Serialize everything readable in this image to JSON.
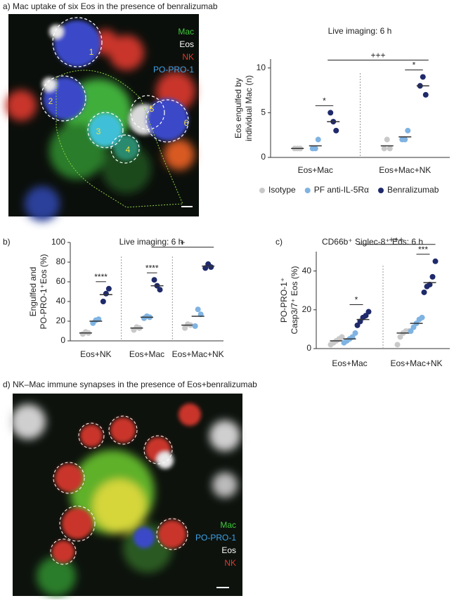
{
  "panel_a": {
    "title": "a) Mac uptake of six Eos in the presence of benralizumab",
    "legend": [
      "Mac",
      "Eos",
      "NK",
      "PO-PRO-1"
    ],
    "cell_labels": [
      "1",
      "2",
      "3",
      "4",
      "5",
      "6"
    ]
  },
  "panel_d": {
    "title": "d) NK–Mac immune synapses in the presence of Eos+benralizumab",
    "legend": [
      "Mac",
      "PO-PRO-1",
      "Eos",
      "NK"
    ]
  },
  "panel_labels": [
    "b)",
    "c)"
  ],
  "chart_data": [
    {
      "type": "dot",
      "title": "Live imaging: 6 h",
      "ylabel": [
        "Eos engulfed by",
        "individual Mac (n)"
      ],
      "categories": [
        "Eos+Mac",
        "Eos+Mac+NK"
      ],
      "ylim": [
        0,
        11
      ],
      "yticks": [
        0,
        5,
        10
      ],
      "series": [
        {
          "name": "Isotype",
          "color": "#c9c9c9",
          "values": [
            1,
            1.3
          ],
          "points": [
            [
              1,
              1,
              1
            ],
            [
              1,
              2,
              1
            ]
          ]
        },
        {
          "name": "PF anti-IL-5Rα",
          "color": "#7fb3e2",
          "values": [
            1.3,
            2.3
          ],
          "points": [
            [
              1,
              1,
              2
            ],
            [
              2,
              2,
              3
            ]
          ]
        },
        {
          "name": "Benralizumab",
          "color": "#1f2a6b",
          "values": [
            4,
            8
          ],
          "points": [
            [
              5,
              4,
              3
            ],
            [
              8,
              9,
              7
            ]
          ]
        }
      ],
      "annotations": [
        {
          "text": "*",
          "from": [
            0,
            1
          ],
          "to": [
            0,
            2
          ]
        },
        {
          "text": "*",
          "from": [
            1,
            1
          ],
          "to": [
            1,
            2
          ]
        },
        {
          "text": "+++",
          "from": [
            0,
            2
          ],
          "to": [
            1,
            2
          ]
        }
      ]
    },
    {
      "type": "dot",
      "title": "Live imaging: 6 h",
      "ylabel": [
        "Engulfed and",
        "PO-PRO-1⁺Eos (%)"
      ],
      "categories": [
        "Eos+NK",
        "Eos+Mac",
        "Eos+Mac+NK"
      ],
      "ylim": [
        0,
        100
      ],
      "yticks": [
        0,
        20,
        40,
        60,
        80,
        100
      ],
      "series": [
        {
          "color": "#c9c9c9",
          "values": [
            8,
            13,
            16
          ],
          "points": [
            [
              7,
              9,
              8
            ],
            [
              11,
              14,
              13
            ],
            [
              13,
              17,
              16
            ]
          ]
        },
        {
          "color": "#7fb3e2",
          "values": [
            20,
            24,
            25
          ],
          "points": [
            [
              18,
              21,
              22
            ],
            [
              23,
              25,
              24
            ],
            [
              15,
              32,
              27
            ]
          ]
        },
        {
          "color": "#1f2a6b",
          "values": [
            47,
            56,
            76
          ],
          "points": [
            [
              40,
              48,
              53
            ],
            [
              62,
              56,
              52
            ],
            [
              74,
              78,
              75
            ]
          ]
        }
      ],
      "annotations": [
        {
          "text": "****",
          "from": [
            0,
            1
          ],
          "to": [
            0,
            2
          ]
        },
        {
          "text": "****",
          "from": [
            1,
            1
          ],
          "to": [
            1,
            2
          ]
        },
        {
          "text": "+",
          "from": [
            1,
            2
          ],
          "to": [
            2,
            2
          ]
        }
      ]
    },
    {
      "type": "dot",
      "title": "CD66b⁺ Siglec-8⁺ Eos: 6 h",
      "ylabel": [
        "PO-PRO-1⁺",
        "Casp3/7⁺ Eos (%)"
      ],
      "categories": [
        "Eos+Mac",
        "Eos+Mac+NK"
      ],
      "ylim": [
        0,
        50
      ],
      "yticks": [
        0,
        20,
        40
      ],
      "series": [
        {
          "color": "#c9c9c9",
          "values": [
            4,
            8
          ],
          "points": [
            [
              2,
              3,
              4,
              5,
              6
            ],
            [
              2,
              6,
              8,
              9,
              9
            ]
          ]
        },
        {
          "color": "#7fb3e2",
          "values": [
            5,
            13
          ],
          "points": [
            [
              3,
              4,
              5,
              6,
              8
            ],
            [
              9,
              11,
              13,
              15,
              16
            ]
          ]
        },
        {
          "color": "#1f2a6b",
          "values": [
            15,
            34
          ],
          "points": [
            [
              12,
              14,
              16,
              17,
              19
            ],
            [
              29,
              32,
              33,
              37,
              45
            ]
          ]
        }
      ],
      "annotations": [
        {
          "text": "*",
          "from": [
            0,
            1
          ],
          "to": [
            0,
            2
          ]
        },
        {
          "text": "***",
          "from": [
            1,
            1
          ],
          "to": [
            1,
            2
          ]
        },
        {
          "text": "+++",
          "from": [
            0,
            2
          ],
          "to": [
            1,
            2
          ]
        }
      ]
    }
  ]
}
